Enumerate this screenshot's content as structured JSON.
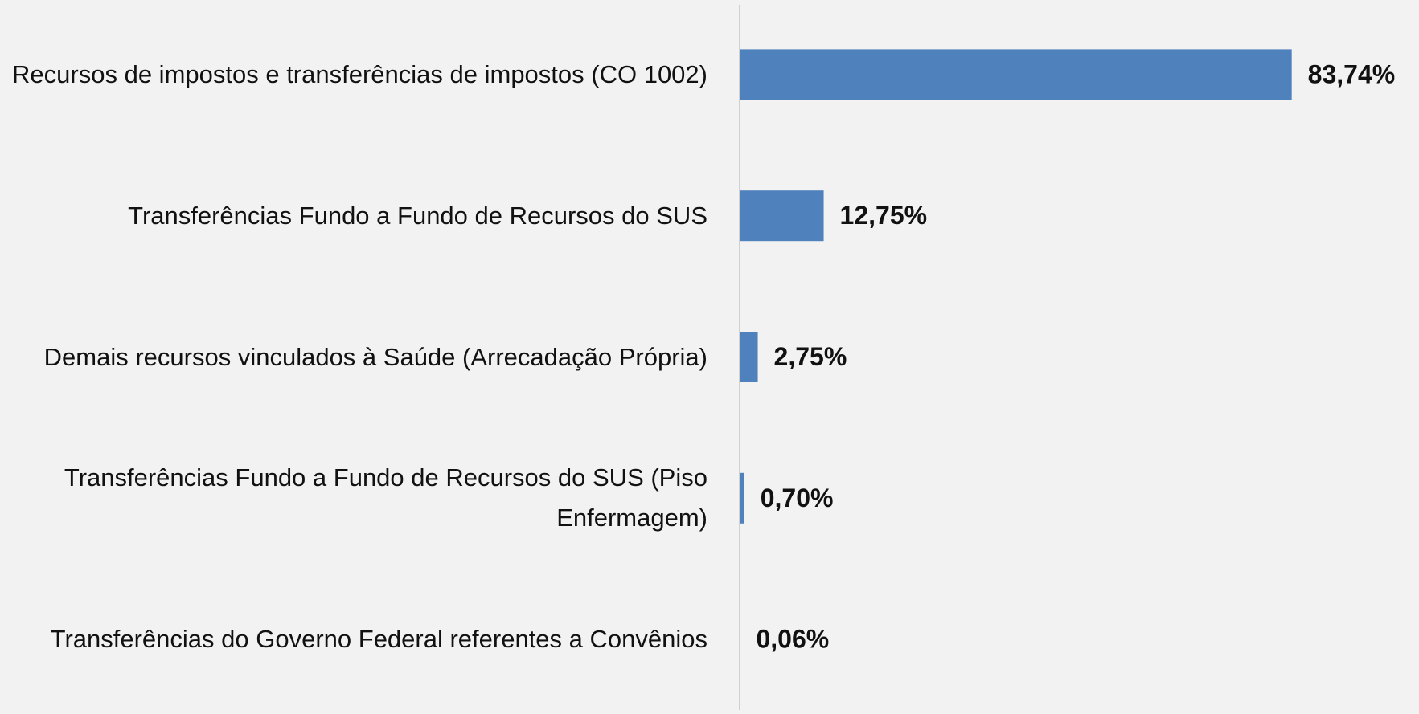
{
  "chart_data": {
    "type": "bar",
    "orientation": "horizontal",
    "categories": [
      "Recursos de impostos e transferências de impostos (CO 1002)",
      "Transferências Fundo a Fundo de Recursos do SUS",
      "Demais recursos vinculados à Saúde (Arrecadação Própria)",
      "Transferências Fundo a Fundo de Recursos do SUS (Piso Enfermagem)",
      "Transferências do Governo Federal referentes a Convênios"
    ],
    "values": [
      83.74,
      12.75,
      2.75,
      0.7,
      0.06
    ],
    "value_labels": [
      "83,74%",
      "12,75%",
      "2,75%",
      "0,70%",
      "0,06%"
    ],
    "color": "#4f81bd",
    "xlim": [
      0,
      100
    ]
  }
}
